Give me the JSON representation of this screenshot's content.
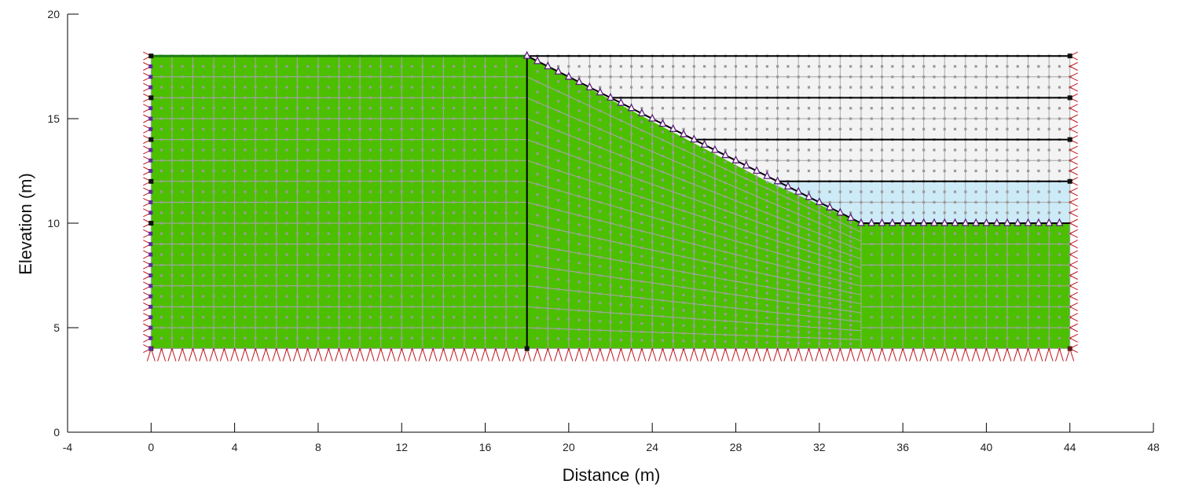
{
  "chart_data": {
    "type": "finite-element mesh",
    "xlabel": "Distance (m)",
    "ylabel": "Elevation (m)",
    "xlim": [
      -4,
      48
    ],
    "ylim": [
      0,
      20
    ],
    "x_ticks": [
      "-4",
      "0",
      "4",
      "8",
      "12",
      "16",
      "20",
      "24",
      "28",
      "32",
      "36",
      "40",
      "44",
      "48"
    ],
    "y_ticks": [
      "0",
      "5",
      "10",
      "15",
      "20"
    ],
    "regions": [
      {
        "name": "soil",
        "color": "#4cbf00",
        "polygon": [
          [
            0,
            4
          ],
          [
            44,
            4
          ],
          [
            44,
            10
          ],
          [
            34,
            10
          ],
          [
            18,
            18
          ],
          [
            0,
            18
          ]
        ]
      },
      {
        "name": "ponded-water",
        "color": "#cdeaf7",
        "polygon": [
          [
            29.5,
            12
          ],
          [
            44,
            12
          ],
          [
            44,
            10
          ],
          [
            34,
            10
          ]
        ]
      },
      {
        "name": "excavated-layers",
        "color": "#f3f3f3",
        "polygon": [
          [
            18,
            18
          ],
          [
            44,
            18
          ],
          [
            44,
            12
          ],
          [
            29.5,
            12
          ]
        ]
      }
    ],
    "layer_lines_y": [
      18,
      16,
      14,
      12
    ],
    "internal_boundary_x": 18,
    "mesh_spacing": 1,
    "colors": {
      "soil": "#4cbf00",
      "water": "#cdeaf7",
      "removed": "#f3f3f3",
      "mesh": "#a8a8a8",
      "fixity": "#c0141c",
      "surface_marker": "#5b1f7a"
    }
  }
}
